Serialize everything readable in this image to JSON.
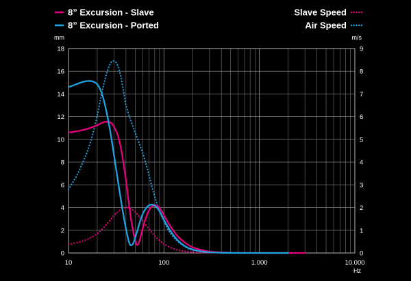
{
  "chart_data": {
    "type": "line",
    "x_scale": "log",
    "xlim": [
      10,
      10000
    ],
    "ylim_left": [
      0,
      18
    ],
    "ylim_right": [
      0,
      9
    ],
    "left_unit": "mm",
    "right_unit": "m/s",
    "x_unit": "Hz",
    "x_ticks": [
      {
        "value": 10,
        "label": "10"
      },
      {
        "value": 100,
        "label": "100"
      },
      {
        "value": 1000,
        "label": "1.000"
      },
      {
        "value": 10000,
        "label": "10.000"
      }
    ],
    "left_ticks": [
      0,
      2,
      4,
      6,
      8,
      10,
      12,
      14,
      16,
      18
    ],
    "right_ticks": [
      0,
      1,
      2,
      3,
      4,
      5,
      6,
      7,
      8,
      9
    ],
    "grid": true,
    "legend": {
      "left": [
        "8” Excursion - Slave",
        "8” Excursion - Ported"
      ],
      "right": [
        "Slave Speed",
        "Air Speed"
      ]
    },
    "series": [
      {
        "name": "8” Excursion - Slave",
        "axis": "left",
        "style": "solid",
        "color": "#e6007e",
        "x": [
          10,
          13,
          16,
          20,
          23,
          26,
          28,
          30,
          33,
          36,
          40,
          43,
          46,
          50,
          53,
          56,
          60,
          66,
          72,
          80,
          88,
          96,
          105,
          120,
          140,
          170,
          200,
          250,
          300,
          400,
          500,
          700,
          1000,
          1500,
          2000,
          3000
        ],
        "y": [
          10.6,
          10.75,
          10.95,
          11.25,
          11.5,
          11.55,
          11.45,
          11.1,
          10.3,
          8.9,
          6.4,
          4.3,
          2.6,
          1.1,
          0.7,
          1.2,
          2.2,
          3.3,
          3.95,
          4.2,
          4.05,
          3.6,
          3.0,
          2.2,
          1.45,
          0.85,
          0.5,
          0.25,
          0.12,
          0.05,
          0.02,
          0.01,
          0.0,
          0.0,
          0.0,
          0.0
        ]
      },
      {
        "name": "8” Excursion - Ported",
        "axis": "left",
        "style": "solid",
        "color": "#1fa3e0",
        "x": [
          10,
          12,
          14,
          16,
          18,
          20,
          22,
          24,
          27,
          30,
          33,
          36,
          39,
          42,
          44,
          46,
          48,
          50,
          53,
          56,
          60,
          65,
          70,
          76,
          82,
          88,
          95,
          105,
          120,
          140,
          170,
          200,
          250,
          300,
          400,
          500,
          700,
          1000,
          2000
        ],
        "y": [
          14.6,
          14.85,
          15.05,
          15.15,
          15.1,
          14.85,
          14.2,
          13.1,
          11.0,
          8.6,
          6.3,
          4.3,
          2.6,
          1.3,
          0.75,
          0.7,
          0.9,
          1.35,
          2.05,
          2.75,
          3.45,
          3.95,
          4.2,
          4.25,
          4.1,
          3.8,
          3.3,
          2.6,
          1.8,
          1.1,
          0.55,
          0.3,
          0.13,
          0.06,
          0.02,
          0.01,
          0.0,
          0.0,
          0.0
        ]
      },
      {
        "name": "Slave Speed",
        "axis": "right",
        "style": "dotted",
        "color": "#e6007e",
        "x": [
          10,
          13,
          16,
          20,
          25,
          30,
          35,
          40,
          45,
          50,
          55,
          60,
          70,
          80,
          90,
          100,
          120,
          150,
          200,
          300,
          500,
          1000,
          3000
        ],
        "y": [
          0.38,
          0.48,
          0.62,
          0.85,
          1.25,
          1.65,
          1.9,
          2.0,
          1.95,
          1.8,
          1.6,
          1.4,
          1.05,
          0.75,
          0.55,
          0.4,
          0.22,
          0.1,
          0.04,
          0.01,
          0.0,
          0.0,
          0.0
        ]
      },
      {
        "name": "Air Speed",
        "axis": "right",
        "style": "dotted",
        "color": "#1fa3e0",
        "x": [
          10,
          12,
          14,
          16,
          18,
          20,
          22,
          24,
          26,
          28,
          30,
          32,
          34,
          36,
          38,
          40,
          44,
          48,
          52,
          56,
          60,
          65,
          70,
          75,
          80,
          85,
          90,
          95,
          100,
          110,
          120,
          140,
          170,
          200,
          300,
          500,
          1000,
          3000
        ],
        "y": [
          2.8,
          3.35,
          3.95,
          4.55,
          5.25,
          6.05,
          6.9,
          7.6,
          8.1,
          8.4,
          8.45,
          8.35,
          8.05,
          7.6,
          7.05,
          6.5,
          5.95,
          5.5,
          5.1,
          4.75,
          4.4,
          3.9,
          3.4,
          2.9,
          2.5,
          2.15,
          1.85,
          1.6,
          1.4,
          1.05,
          0.8,
          0.5,
          0.25,
          0.13,
          0.03,
          0.01,
          0.0,
          0.0
        ]
      }
    ]
  }
}
